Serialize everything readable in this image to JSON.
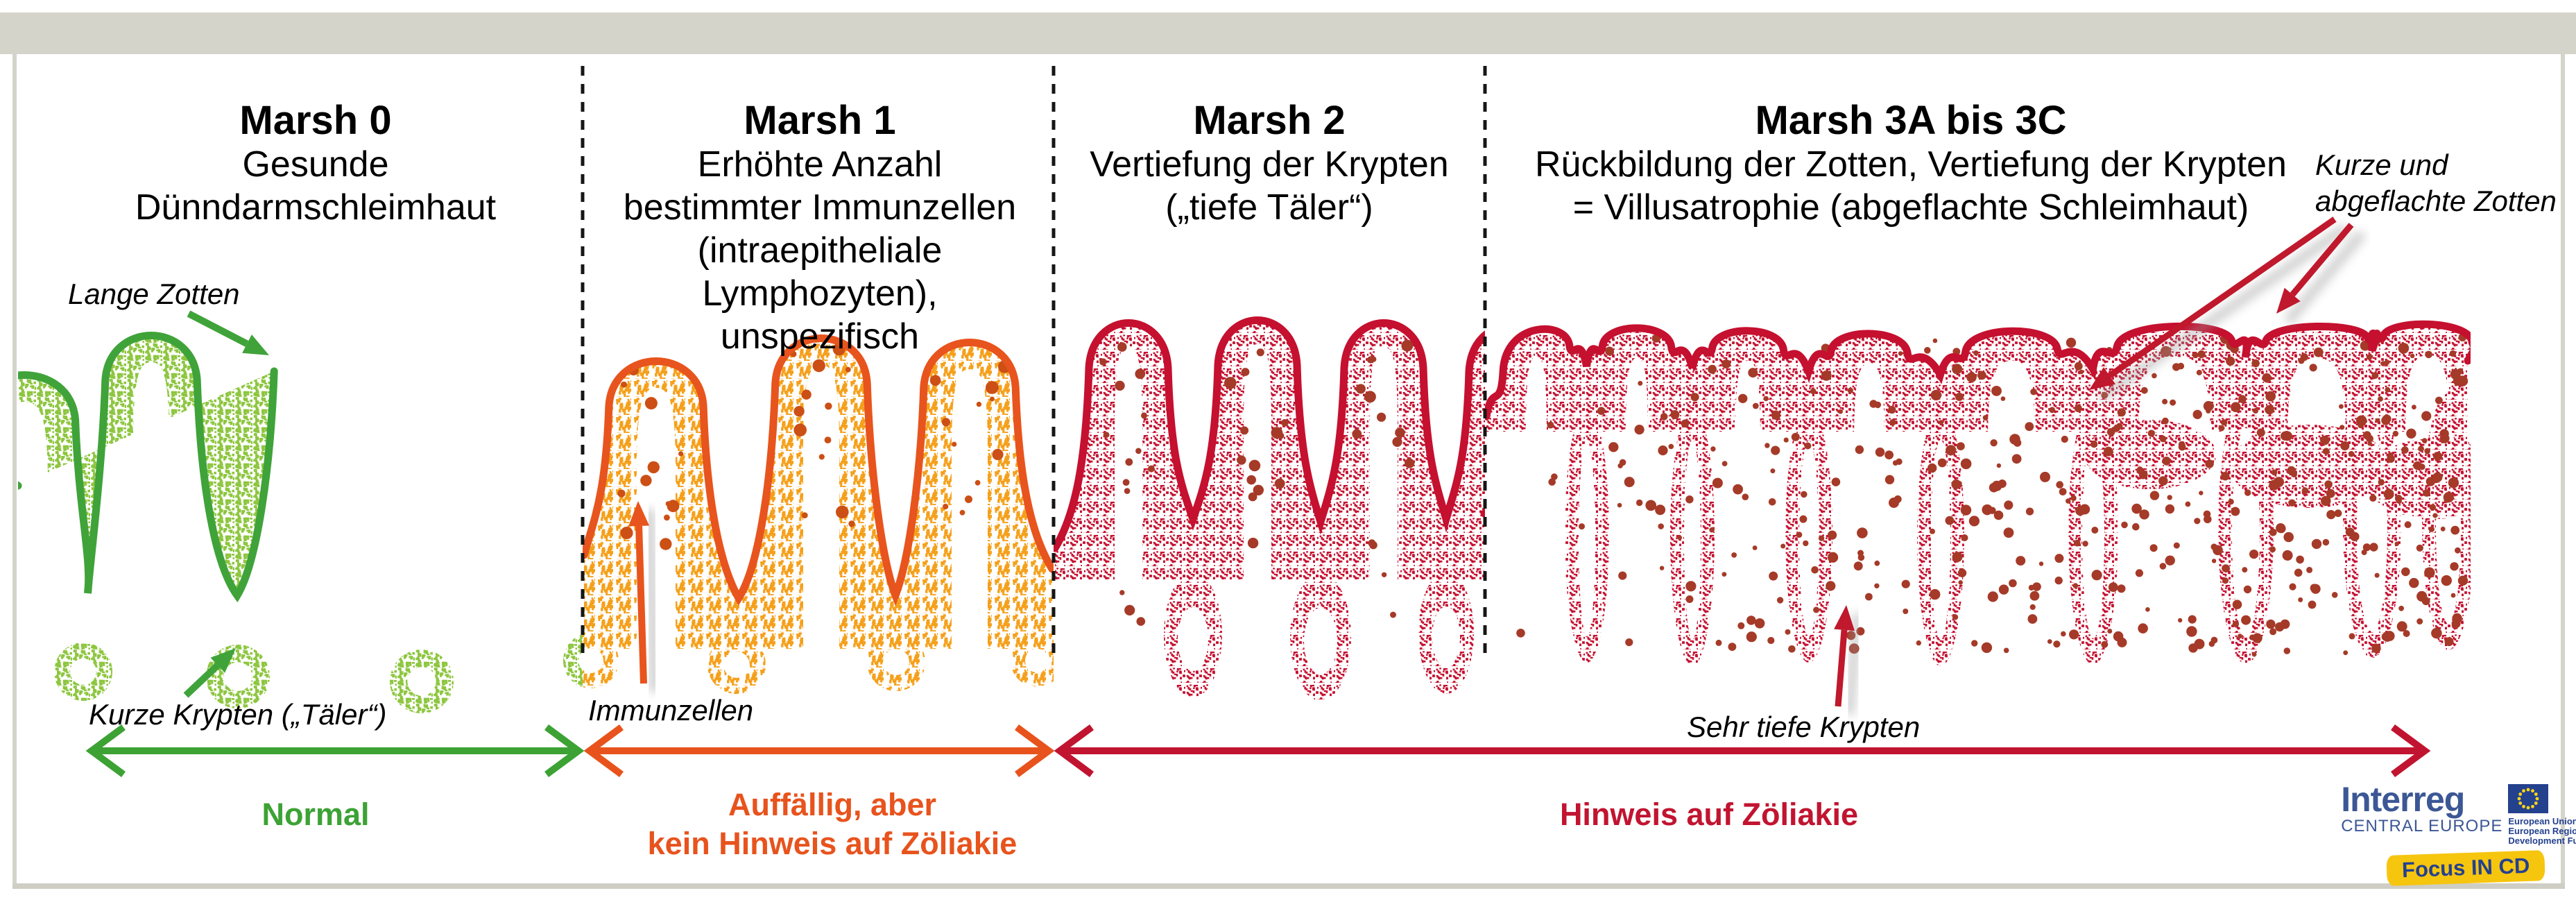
{
  "sections": [
    {
      "id": "marsh0",
      "title": "Marsh 0",
      "lines": [
        "Gesunde Dünndarmschleimhaut"
      ]
    },
    {
      "id": "marsh1",
      "title": "Marsh 1",
      "lines": [
        "Erhöhte Anzahl",
        "bestimmter Immunzellen",
        "(intraepitheliale Lymphozyten),",
        "unspezifisch"
      ]
    },
    {
      "id": "marsh2",
      "title": "Marsh 2",
      "lines": [
        "Vertiefung der Krypten",
        "(„tiefe Täler“)"
      ]
    },
    {
      "id": "marsh3",
      "title": "Marsh 3A bis 3C",
      "lines": [
        "Rückbildung der Zotten, Vertiefung der Krypten",
        "= Villusatrophie (abgeflachte Schleimhaut)"
      ]
    }
  ],
  "annotations": {
    "lange_zotten": "Lange Zotten",
    "kurze_krypten": "Kurze Krypten („Täler“)",
    "immunzellen": "Immunzellen",
    "sehr_tiefe_krypten": "Sehr tiefe Krypten",
    "kurze_abgeflachte_line1": "Kurze und",
    "kurze_abgeflachte_line2": "abgeflachte Zotten"
  },
  "zones": [
    {
      "label": "Normal",
      "color": "#3ca234"
    },
    {
      "label_line1": "Auffällig, aber",
      "label_line2": "kein Hinweis auf Zöliakie",
      "color": "#e8531d"
    },
    {
      "label": "Hinweis auf Zöliakie",
      "color": "#c11430"
    }
  ],
  "colors": {
    "green_outline": "#3fa33a",
    "green_stipple": "#8dc63f",
    "orange_outline": "#e8541d",
    "orange_stipple": "#f5a01b",
    "orange_cells": "#cc4f15",
    "red_outline": "#c5102f",
    "red_stipple": "#c5102f",
    "red_cells": "#a53a28",
    "dark_red": "#c0182c",
    "band_gray": "#d5d4cb"
  },
  "logo": {
    "brand": "Interreg",
    "program": "CENTRAL EUROPE",
    "eu_line1": "European Union",
    "eu_line2": "European Regional",
    "eu_line3": "Development Fund",
    "banner": "Focus IN CD"
  }
}
